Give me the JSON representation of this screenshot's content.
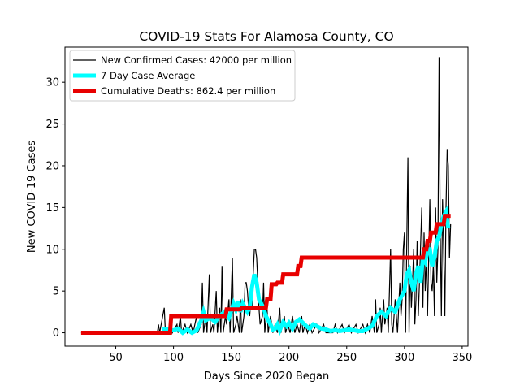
{
  "chart_data": {
    "type": "line",
    "title": "COVID-19 Stats For Alamosa County, CO",
    "xlabel": "Days Since 2020 Began",
    "ylabel": "New COVID-19 Cases",
    "xlim": [
      6,
      355
    ],
    "ylim": [
      -1.6,
      34.2
    ],
    "xticks": [
      50,
      100,
      150,
      200,
      250,
      300,
      350
    ],
    "yticks": [
      0,
      5,
      10,
      15,
      20,
      25,
      30
    ],
    "grid": false,
    "legend_position": "top-left",
    "series": [
      {
        "name": "New Confirmed Cases: 42000 per million",
        "color": "#000000",
        "points": [
          [
            20,
            0
          ],
          [
            86,
            0
          ],
          [
            87,
            1
          ],
          [
            88,
            0
          ],
          [
            92,
            3
          ],
          [
            93,
            0
          ],
          [
            96,
            0
          ],
          [
            98,
            1
          ],
          [
            99,
            0
          ],
          [
            103,
            1
          ],
          [
            104,
            0
          ],
          [
            106,
            2
          ],
          [
            107,
            0
          ],
          [
            110,
            1
          ],
          [
            112,
            0
          ],
          [
            115,
            1
          ],
          [
            117,
            0
          ],
          [
            120,
            2
          ],
          [
            121,
            0
          ],
          [
            124,
            1
          ],
          [
            125,
            6
          ],
          [
            126,
            0
          ],
          [
            128,
            2
          ],
          [
            129,
            0
          ],
          [
            131,
            7
          ],
          [
            132,
            0
          ],
          [
            134,
            1
          ],
          [
            135,
            0
          ],
          [
            137,
            5
          ],
          [
            138,
            0
          ],
          [
            140,
            3
          ],
          [
            141,
            0
          ],
          [
            142,
            8
          ],
          [
            143,
            0
          ],
          [
            145,
            2
          ],
          [
            146,
            1
          ],
          [
            148,
            4
          ],
          [
            149,
            0
          ],
          [
            151,
            9
          ],
          [
            152,
            0
          ],
          [
            154,
            1
          ],
          [
            155,
            2
          ],
          [
            157,
            0
          ],
          [
            158,
            4
          ],
          [
            159,
            0
          ],
          [
            161,
            2
          ],
          [
            162,
            6
          ],
          [
            163,
            6
          ],
          [
            164,
            5
          ],
          [
            165,
            3
          ],
          [
            166,
            2
          ],
          [
            167,
            4
          ],
          [
            168,
            3
          ],
          [
            169,
            7
          ],
          [
            170,
            10
          ],
          [
            171,
            10
          ],
          [
            172,
            9
          ],
          [
            173,
            6
          ],
          [
            174,
            3
          ],
          [
            175,
            1
          ],
          [
            177,
            2
          ],
          [
            178,
            6
          ],
          [
            179,
            0
          ],
          [
            181,
            3
          ],
          [
            182,
            0
          ],
          [
            184,
            2
          ],
          [
            186,
            0
          ],
          [
            188,
            1
          ],
          [
            190,
            0
          ],
          [
            192,
            3
          ],
          [
            193,
            0
          ],
          [
            196,
            2
          ],
          [
            197,
            0
          ],
          [
            199,
            1
          ],
          [
            201,
            0
          ],
          [
            203,
            2
          ],
          [
            205,
            0
          ],
          [
            207,
            1
          ],
          [
            209,
            0
          ],
          [
            211,
            2
          ],
          [
            212,
            0
          ],
          [
            214,
            1
          ],
          [
            216,
            0
          ],
          [
            218,
            1
          ],
          [
            220,
            0
          ],
          [
            224,
            1
          ],
          [
            226,
            0
          ],
          [
            230,
            1
          ],
          [
            232,
            0
          ],
          [
            238,
            0
          ],
          [
            240,
            1
          ],
          [
            242,
            0
          ],
          [
            246,
            1
          ],
          [
            248,
            0
          ],
          [
            252,
            1
          ],
          [
            254,
            0
          ],
          [
            258,
            1
          ],
          [
            260,
            0
          ],
          [
            264,
            1
          ],
          [
            266,
            0
          ],
          [
            268,
            1
          ],
          [
            270,
            0
          ],
          [
            272,
            2
          ],
          [
            274,
            0
          ],
          [
            275,
            4
          ],
          [
            276,
            0
          ],
          [
            278,
            1
          ],
          [
            279,
            3
          ],
          [
            280,
            0
          ],
          [
            282,
            4
          ],
          [
            283,
            1
          ],
          [
            285,
            3
          ],
          [
            286,
            0
          ],
          [
            287,
            5
          ],
          [
            288,
            10
          ],
          [
            289,
            1
          ],
          [
            290,
            0
          ],
          [
            292,
            4
          ],
          [
            293,
            2
          ],
          [
            294,
            0
          ],
          [
            296,
            6
          ],
          [
            297,
            2
          ],
          [
            298,
            4
          ],
          [
            299,
            10
          ],
          [
            300,
            12
          ],
          [
            301,
            0
          ],
          [
            303,
            21
          ],
          [
            304,
            0
          ],
          [
            305,
            8
          ],
          [
            306,
            3
          ],
          [
            307,
            6
          ],
          [
            308,
            10
          ],
          [
            309,
            1
          ],
          [
            310,
            4
          ],
          [
            311,
            11
          ],
          [
            312,
            2
          ],
          [
            313,
            6
          ],
          [
            315,
            15
          ],
          [
            316,
            3
          ],
          [
            317,
            12
          ],
          [
            318,
            5
          ],
          [
            319,
            9
          ],
          [
            320,
            2
          ],
          [
            322,
            16
          ],
          [
            323,
            6
          ],
          [
            324,
            5
          ],
          [
            325,
            8
          ],
          [
            326,
            2
          ],
          [
            327,
            15
          ],
          [
            328,
            6
          ],
          [
            329,
            10
          ],
          [
            330,
            33
          ],
          [
            331,
            12
          ],
          [
            332,
            2
          ],
          [
            333,
            16
          ],
          [
            334,
            10
          ],
          [
            335,
            2
          ],
          [
            336,
            15
          ],
          [
            337,
            22
          ],
          [
            338,
            20
          ],
          [
            339,
            9
          ],
          [
            340,
            13
          ]
        ]
      },
      {
        "name": "7 Day Case Average",
        "color": "#00ffff",
        "points": [
          [
            90,
            0.5
          ],
          [
            95,
            0.4
          ],
          [
            100,
            0.3
          ],
          [
            104,
            0.5
          ],
          [
            108,
            0
          ],
          [
            112,
            0.4
          ],
          [
            116,
            0
          ],
          [
            120,
            0.3
          ],
          [
            124,
            1.5
          ],
          [
            126,
            2.5
          ],
          [
            128,
            1.5
          ],
          [
            132,
            1.8
          ],
          [
            136,
            1.3
          ],
          [
            140,
            2
          ],
          [
            144,
            2.5
          ],
          [
            148,
            1.8
          ],
          [
            152,
            3.5
          ],
          [
            154,
            2.8
          ],
          [
            156,
            3.8
          ],
          [
            158,
            2.5
          ],
          [
            160,
            3.5
          ],
          [
            162,
            3
          ],
          [
            164,
            2.5
          ],
          [
            166,
            3
          ],
          [
            168,
            5.5
          ],
          [
            170,
            7
          ],
          [
            172,
            6
          ],
          [
            174,
            4
          ],
          [
            176,
            3.5
          ],
          [
            178,
            3
          ],
          [
            180,
            2
          ],
          [
            182,
            1.5
          ],
          [
            184,
            1
          ],
          [
            186,
            0.4
          ],
          [
            188,
            0.5
          ],
          [
            190,
            1
          ],
          [
            192,
            0.3
          ],
          [
            195,
            1.3
          ],
          [
            198,
            0.8
          ],
          [
            200,
            1.2
          ],
          [
            203,
            0.5
          ],
          [
            206,
            1.3
          ],
          [
            209,
            1.6
          ],
          [
            212,
            1.2
          ],
          [
            215,
            0.8
          ],
          [
            218,
            0.5
          ],
          [
            221,
            1
          ],
          [
            224,
            0.8
          ],
          [
            228,
            0.5
          ],
          [
            232,
            0.4
          ],
          [
            236,
            0.2
          ],
          [
            240,
            0.3
          ],
          [
            244,
            0.2
          ],
          [
            248,
            0.3
          ],
          [
            252,
            0.4
          ],
          [
            256,
            0.3
          ],
          [
            260,
            0.2
          ],
          [
            264,
            0.2
          ],
          [
            268,
            0.5
          ],
          [
            272,
            0.8
          ],
          [
            276,
            2
          ],
          [
            280,
            2.5
          ],
          [
            284,
            2
          ],
          [
            288,
            3
          ],
          [
            292,
            2.5
          ],
          [
            296,
            4
          ],
          [
            300,
            5
          ],
          [
            302,
            7
          ],
          [
            304,
            7.5
          ],
          [
            306,
            6
          ],
          [
            308,
            5
          ],
          [
            310,
            7
          ],
          [
            312,
            8
          ],
          [
            314,
            6
          ],
          [
            316,
            9
          ],
          [
            318,
            8.5
          ],
          [
            320,
            10
          ],
          [
            322,
            10
          ],
          [
            324,
            8
          ],
          [
            326,
            9
          ],
          [
            328,
            11
          ],
          [
            330,
            11.5
          ],
          [
            332,
            13
          ],
          [
            334,
            14
          ],
          [
            336,
            14.5
          ],
          [
            338,
            12.5
          ]
        ]
      },
      {
        "name": "Cumulative Deaths: 862.4 per million",
        "color": "#e80000",
        "points": [
          [
            20,
            0
          ],
          [
            97,
            0
          ],
          [
            98,
            2
          ],
          [
            145,
            2
          ],
          [
            146,
            2.8
          ],
          [
            158,
            2.8
          ],
          [
            159,
            3
          ],
          [
            180,
            3
          ],
          [
            181,
            4
          ],
          [
            184,
            4
          ],
          [
            185,
            5.8
          ],
          [
            189,
            5.8
          ],
          [
            190,
            6
          ],
          [
            194,
            6
          ],
          [
            195,
            7
          ],
          [
            207,
            7
          ],
          [
            208,
            8
          ],
          [
            210,
            8
          ],
          [
            211,
            9
          ],
          [
            316,
            9
          ],
          [
            317,
            10
          ],
          [
            319,
            10
          ],
          [
            320,
            11
          ],
          [
            322,
            11
          ],
          [
            323,
            12
          ],
          [
            327,
            12
          ],
          [
            328,
            13
          ],
          [
            334,
            13
          ],
          [
            335,
            14
          ],
          [
            340,
            14
          ]
        ]
      }
    ]
  }
}
